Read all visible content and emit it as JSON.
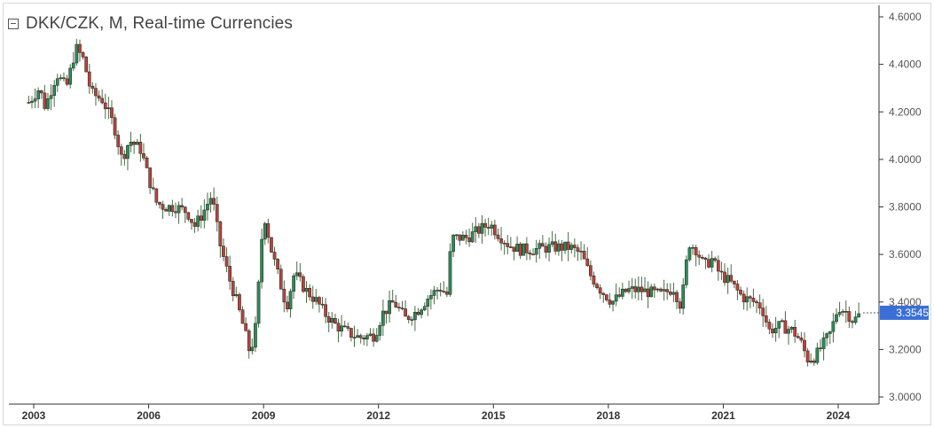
{
  "header": {
    "title": "DKK/CZK, M, Real-time Currencies",
    "collapse_icon": "collapse-icon"
  },
  "colors": {
    "up": "#2e8b57",
    "down": "#b8433a",
    "wick": "#4a6b45",
    "axis": "#333333",
    "last_price_badge": "#3b6fd6"
  },
  "chart_data": {
    "type": "candlestick",
    "title": "DKK/CZK, M, Real-time Currencies",
    "xlabel": "",
    "ylabel": "",
    "interval": "monthly",
    "x_ticks": [
      "2003",
      "2006",
      "2009",
      "2012",
      "2015",
      "2018",
      "2021",
      "2024"
    ],
    "y_ticks": [
      "4.6000",
      "4.4000",
      "4.2000",
      "4.0000",
      "3.8000",
      "3.6000",
      "3.4000",
      "3.2000",
      "3.0000"
    ],
    "ylim": [
      3.0,
      4.6
    ],
    "xlim": [
      2002.7,
      2024.9
    ],
    "last_price": "3.3545",
    "series_path": [
      [
        2002.87,
        4.24
      ],
      [
        2003.15,
        4.3
      ],
      [
        2003.3,
        4.22
      ],
      [
        2003.6,
        4.36
      ],
      [
        2003.85,
        4.3
      ],
      [
        2004.1,
        4.47
      ],
      [
        2004.3,
        4.42
      ],
      [
        2004.5,
        4.28
      ],
      [
        2004.8,
        4.25
      ],
      [
        2005.1,
        4.14
      ],
      [
        2005.3,
        4.0
      ],
      [
        2005.5,
        4.08
      ],
      [
        2005.8,
        4.04
      ],
      [
        2006.0,
        3.92
      ],
      [
        2006.2,
        3.82
      ],
      [
        2006.4,
        3.8
      ],
      [
        2006.7,
        3.8
      ],
      [
        2007.0,
        3.78
      ],
      [
        2007.2,
        3.72
      ],
      [
        2007.4,
        3.77
      ],
      [
        2007.65,
        3.85
      ],
      [
        2007.85,
        3.65
      ],
      [
        2008.1,
        3.5
      ],
      [
        2008.3,
        3.4
      ],
      [
        2008.5,
        3.28
      ],
      [
        2008.65,
        3.18
      ],
      [
        2008.8,
        3.3
      ],
      [
        2009.0,
        3.78
      ],
      [
        2009.2,
        3.62
      ],
      [
        2009.4,
        3.5
      ],
      [
        2009.6,
        3.38
      ],
      [
        2009.8,
        3.52
      ],
      [
        2010.1,
        3.45
      ],
      [
        2010.4,
        3.4
      ],
      [
        2010.6,
        3.35
      ],
      [
        2010.9,
        3.3
      ],
      [
        2011.2,
        3.27
      ],
      [
        2011.5,
        3.25
      ],
      [
        2011.9,
        3.26
      ],
      [
        2012.1,
        3.35
      ],
      [
        2012.4,
        3.4
      ],
      [
        2012.7,
        3.33
      ],
      [
        2013.0,
        3.36
      ],
      [
        2013.3,
        3.42
      ],
      [
        2013.6,
        3.46
      ],
      [
        2013.8,
        3.43
      ],
      [
        2013.9,
        3.67
      ],
      [
        2014.3,
        3.67
      ],
      [
        2014.6,
        3.7
      ],
      [
        2014.9,
        3.73
      ],
      [
        2015.1,
        3.69
      ],
      [
        2015.4,
        3.64
      ],
      [
        2015.7,
        3.62
      ],
      [
        2016.0,
        3.62
      ],
      [
        2016.5,
        3.63
      ],
      [
        2017.0,
        3.63
      ],
      [
        2017.3,
        3.6
      ],
      [
        2017.5,
        3.52
      ],
      [
        2017.8,
        3.45
      ],
      [
        2018.1,
        3.4
      ],
      [
        2018.5,
        3.45
      ],
      [
        2018.8,
        3.45
      ],
      [
        2019.1,
        3.44
      ],
      [
        2019.4,
        3.43
      ],
      [
        2019.7,
        3.46
      ],
      [
        2019.9,
        3.38
      ],
      [
        2020.1,
        3.65
      ],
      [
        2020.3,
        3.62
      ],
      [
        2020.5,
        3.55
      ],
      [
        2020.7,
        3.58
      ],
      [
        2020.9,
        3.52
      ],
      [
        2021.2,
        3.48
      ],
      [
        2021.5,
        3.42
      ],
      [
        2021.8,
        3.4
      ],
      [
        2022.0,
        3.38
      ],
      [
        2022.2,
        3.28
      ],
      [
        2022.5,
        3.3
      ],
      [
        2022.8,
        3.28
      ],
      [
        2023.0,
        3.24
      ],
      [
        2023.2,
        3.16
      ],
      [
        2023.4,
        3.17
      ],
      [
        2023.6,
        3.22
      ],
      [
        2023.8,
        3.27
      ],
      [
        2024.0,
        3.38
      ],
      [
        2024.2,
        3.36
      ],
      [
        2024.4,
        3.32
      ],
      [
        2024.6,
        3.3545
      ]
    ]
  }
}
